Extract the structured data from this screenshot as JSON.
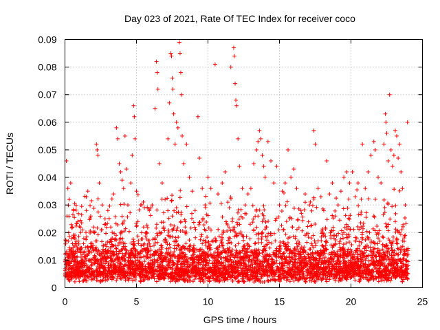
{
  "chart_data": {
    "type": "scatter",
    "title": "Day 023 of 2021, Rate Of TEC Index for receiver coco",
    "xlabel": "GPS time / hours",
    "ylabel": "ROTI / TECUs",
    "xlim": [
      0,
      25
    ],
    "ylim": [
      0,
      0.09
    ],
    "x_ticks": [
      0,
      5,
      10,
      15,
      20,
      25
    ],
    "x_tick_labels": [
      "0",
      "5",
      "10",
      "15",
      "20",
      "25"
    ],
    "y_ticks": [
      0,
      0.01,
      0.02,
      0.03,
      0.04,
      0.05,
      0.06,
      0.07,
      0.08,
      0.09
    ],
    "y_tick_labels": [
      "0",
      "0.01",
      "0.02",
      "0.03",
      "0.04",
      "0.05",
      "0.06",
      "0.07",
      "0.08",
      "0.09"
    ],
    "grid": true,
    "marker": "plus",
    "color": "#ff0000",
    "points": [
      [
        0.1,
        0.046
      ],
      [
        0.2,
        0.036
      ],
      [
        0.3,
        0.032
      ],
      [
        0.4,
        0.038
      ],
      [
        0.5,
        0.022
      ],
      [
        0.6,
        0.028
      ],
      [
        0.7,
        0.018
      ],
      [
        0.9,
        0.024
      ],
      [
        1.1,
        0.02
      ],
      [
        1.3,
        0.016
      ],
      [
        1.5,
        0.028
      ],
      [
        1.6,
        0.035
      ],
      [
        1.8,
        0.026
      ],
      [
        2.0,
        0.022
      ],
      [
        2.2,
        0.052
      ],
      [
        2.25,
        0.05
      ],
      [
        2.3,
        0.048
      ],
      [
        2.4,
        0.038
      ],
      [
        2.6,
        0.03
      ],
      [
        2.8,
        0.025
      ],
      [
        3.0,
        0.028
      ],
      [
        3.2,
        0.022
      ],
      [
        3.4,
        0.034
      ],
      [
        3.6,
        0.058
      ],
      [
        3.7,
        0.054
      ],
      [
        3.8,
        0.045
      ],
      [
        3.9,
        0.042
      ],
      [
        4.0,
        0.039
      ],
      [
        4.1,
        0.036
      ],
      [
        4.2,
        0.055
      ],
      [
        4.3,
        0.043
      ],
      [
        4.4,
        0.03
      ],
      [
        4.6,
        0.038
      ],
      [
        4.7,
        0.048
      ],
      [
        4.8,
        0.066
      ],
      [
        4.85,
        0.062
      ],
      [
        4.9,
        0.054
      ],
      [
        5.0,
        0.035
      ],
      [
        5.1,
        0.024
      ],
      [
        5.3,
        0.03
      ],
      [
        5.5,
        0.022
      ],
      [
        5.7,
        0.02
      ],
      [
        5.9,
        0.028
      ],
      [
        6.1,
        0.03
      ],
      [
        6.3,
        0.065
      ],
      [
        6.4,
        0.082
      ],
      [
        6.45,
        0.078
      ],
      [
        6.5,
        0.072
      ],
      [
        6.6,
        0.045
      ],
      [
        6.8,
        0.038
      ],
      [
        7.0,
        0.032
      ],
      [
        7.2,
        0.054
      ],
      [
        7.3,
        0.067
      ],
      [
        7.4,
        0.085
      ],
      [
        7.45,
        0.084
      ],
      [
        7.5,
        0.076
      ],
      [
        7.55,
        0.072
      ],
      [
        7.6,
        0.063
      ],
      [
        7.7,
        0.052
      ],
      [
        7.8,
        0.06
      ],
      [
        7.9,
        0.058
      ],
      [
        8.0,
        0.089
      ],
      [
        8.05,
        0.085
      ],
      [
        8.1,
        0.078
      ],
      [
        8.15,
        0.07
      ],
      [
        8.2,
        0.055
      ],
      [
        8.3,
        0.045
      ],
      [
        8.5,
        0.052
      ],
      [
        8.7,
        0.04
      ],
      [
        8.9,
        0.035
      ],
      [
        9.1,
        0.028
      ],
      [
        9.3,
        0.062
      ],
      [
        9.4,
        0.047
      ],
      [
        9.6,
        0.036
      ],
      [
        9.8,
        0.03
      ],
      [
        10.0,
        0.04
      ],
      [
        10.2,
        0.036
      ],
      [
        10.5,
        0.081
      ],
      [
        10.7,
        0.034
      ],
      [
        11.0,
        0.038
      ],
      [
        11.2,
        0.042
      ],
      [
        11.4,
        0.031
      ],
      [
        11.6,
        0.08
      ],
      [
        11.8,
        0.087
      ],
      [
        11.85,
        0.084
      ],
      [
        11.9,
        0.074
      ],
      [
        11.95,
        0.068
      ],
      [
        12.0,
        0.066
      ],
      [
        12.1,
        0.054
      ],
      [
        12.2,
        0.044
      ],
      [
        12.4,
        0.036
      ],
      [
        12.6,
        0.03
      ],
      [
        12.8,
        0.034
      ],
      [
        13.0,
        0.036
      ],
      [
        13.2,
        0.045
      ],
      [
        13.4,
        0.05
      ],
      [
        13.5,
        0.053
      ],
      [
        13.6,
        0.057
      ],
      [
        13.7,
        0.054
      ],
      [
        13.8,
        0.048
      ],
      [
        13.9,
        0.044
      ],
      [
        14.0,
        0.04
      ],
      [
        14.2,
        0.053
      ],
      [
        14.4,
        0.046
      ],
      [
        14.6,
        0.038
      ],
      [
        14.8,
        0.044
      ],
      [
        15.0,
        0.03
      ],
      [
        15.2,
        0.035
      ],
      [
        15.4,
        0.038
      ],
      [
        15.6,
        0.05
      ],
      [
        15.8,
        0.04
      ],
      [
        16.0,
        0.043
      ],
      [
        16.2,
        0.036
      ],
      [
        16.5,
        0.028
      ],
      [
        16.8,
        0.034
      ],
      [
        17.1,
        0.03
      ],
      [
        17.4,
        0.057
      ],
      [
        17.5,
        0.052
      ],
      [
        17.7,
        0.036
      ],
      [
        17.9,
        0.033
      ],
      [
        18.1,
        0.028
      ],
      [
        18.3,
        0.046
      ],
      [
        18.5,
        0.034
      ],
      [
        18.7,
        0.038
      ],
      [
        18.9,
        0.026
      ],
      [
        19.1,
        0.03
      ],
      [
        19.3,
        0.035
      ],
      [
        19.5,
        0.04
      ],
      [
        19.7,
        0.042
      ],
      [
        19.9,
        0.038
      ],
      [
        20.1,
        0.042
      ],
      [
        20.3,
        0.033
      ],
      [
        20.5,
        0.038
      ],
      [
        20.8,
        0.052
      ],
      [
        21.0,
        0.036
      ],
      [
        21.2,
        0.042
      ],
      [
        21.4,
        0.048
      ],
      [
        21.6,
        0.053
      ],
      [
        21.7,
        0.05
      ],
      [
        21.9,
        0.04
      ],
      [
        22.1,
        0.038
      ],
      [
        22.3,
        0.052
      ],
      [
        22.4,
        0.063
      ],
      [
        22.45,
        0.06
      ],
      [
        22.5,
        0.056
      ],
      [
        22.6,
        0.046
      ],
      [
        22.7,
        0.07
      ],
      [
        22.8,
        0.05
      ],
      [
        22.9,
        0.044
      ],
      [
        23.0,
        0.048
      ],
      [
        23.1,
        0.057
      ],
      [
        23.2,
        0.055
      ],
      [
        23.3,
        0.047
      ],
      [
        23.4,
        0.052
      ],
      [
        23.5,
        0.042
      ],
      [
        23.6,
        0.036
      ],
      [
        23.8,
        0.03
      ],
      [
        23.95,
        0.06
      ],
      [
        0.3,
        0.012
      ],
      [
        0.6,
        0.008
      ],
      [
        0.9,
        0.014
      ],
      [
        1.2,
        0.006
      ],
      [
        1.5,
        0.01
      ],
      [
        1.8,
        0.016
      ],
      [
        2.1,
        0.009
      ],
      [
        2.4,
        0.012
      ],
      [
        2.7,
        0.007
      ],
      [
        3.0,
        0.011
      ],
      [
        3.3,
        0.018
      ],
      [
        3.6,
        0.013
      ],
      [
        3.9,
        0.02
      ],
      [
        4.2,
        0.016
      ],
      [
        4.5,
        0.011
      ],
      [
        4.8,
        0.009
      ],
      [
        5.1,
        0.008
      ],
      [
        5.4,
        0.013
      ],
      [
        5.7,
        0.006
      ],
      [
        6.0,
        0.012
      ],
      [
        6.3,
        0.018
      ],
      [
        6.6,
        0.014
      ],
      [
        6.9,
        0.022
      ],
      [
        7.2,
        0.019
      ],
      [
        7.5,
        0.026
      ],
      [
        7.8,
        0.017
      ],
      [
        8.1,
        0.024
      ],
      [
        8.4,
        0.02
      ],
      [
        8.7,
        0.015
      ],
      [
        9.0,
        0.012
      ],
      [
        9.3,
        0.01
      ],
      [
        9.6,
        0.016
      ],
      [
        9.9,
        0.009
      ],
      [
        10.2,
        0.014
      ],
      [
        10.5,
        0.018
      ],
      [
        10.8,
        0.012
      ],
      [
        11.1,
        0.02
      ],
      [
        11.4,
        0.016
      ],
      [
        11.7,
        0.024
      ],
      [
        12.0,
        0.019
      ],
      [
        12.3,
        0.013
      ],
      [
        12.6,
        0.011
      ],
      [
        12.9,
        0.015
      ],
      [
        13.2,
        0.021
      ],
      [
        13.5,
        0.026
      ],
      [
        13.8,
        0.024
      ],
      [
        14.1,
        0.022
      ],
      [
        14.4,
        0.019
      ],
      [
        14.7,
        0.017
      ],
      [
        15.0,
        0.015
      ],
      [
        15.3,
        0.021
      ],
      [
        15.6,
        0.018
      ],
      [
        15.9,
        0.022
      ],
      [
        16.2,
        0.016
      ],
      [
        16.5,
        0.012
      ],
      [
        16.8,
        0.019
      ],
      [
        17.1,
        0.014
      ],
      [
        17.4,
        0.011
      ],
      [
        17.7,
        0.017
      ],
      [
        18.0,
        0.02
      ],
      [
        18.3,
        0.014
      ],
      [
        18.6,
        0.018
      ],
      [
        18.9,
        0.012
      ],
      [
        19.2,
        0.016
      ],
      [
        19.5,
        0.02
      ],
      [
        19.8,
        0.014
      ],
      [
        20.1,
        0.011
      ],
      [
        20.4,
        0.018
      ],
      [
        20.7,
        0.022
      ],
      [
        21.0,
        0.015
      ],
      [
        21.3,
        0.02
      ],
      [
        21.6,
        0.026
      ],
      [
        21.9,
        0.018
      ],
      [
        22.2,
        0.014
      ],
      [
        22.5,
        0.022
      ],
      [
        22.8,
        0.016
      ],
      [
        23.1,
        0.024
      ],
      [
        23.4,
        0.02
      ],
      [
        23.7,
        0.012
      ],
      [
        24.0,
        0.008
      ]
    ],
    "background_density": {
      "x_range": [
        0,
        24
      ],
      "base_band": [
        0.002,
        0.012
      ],
      "note_free": true
    }
  }
}
